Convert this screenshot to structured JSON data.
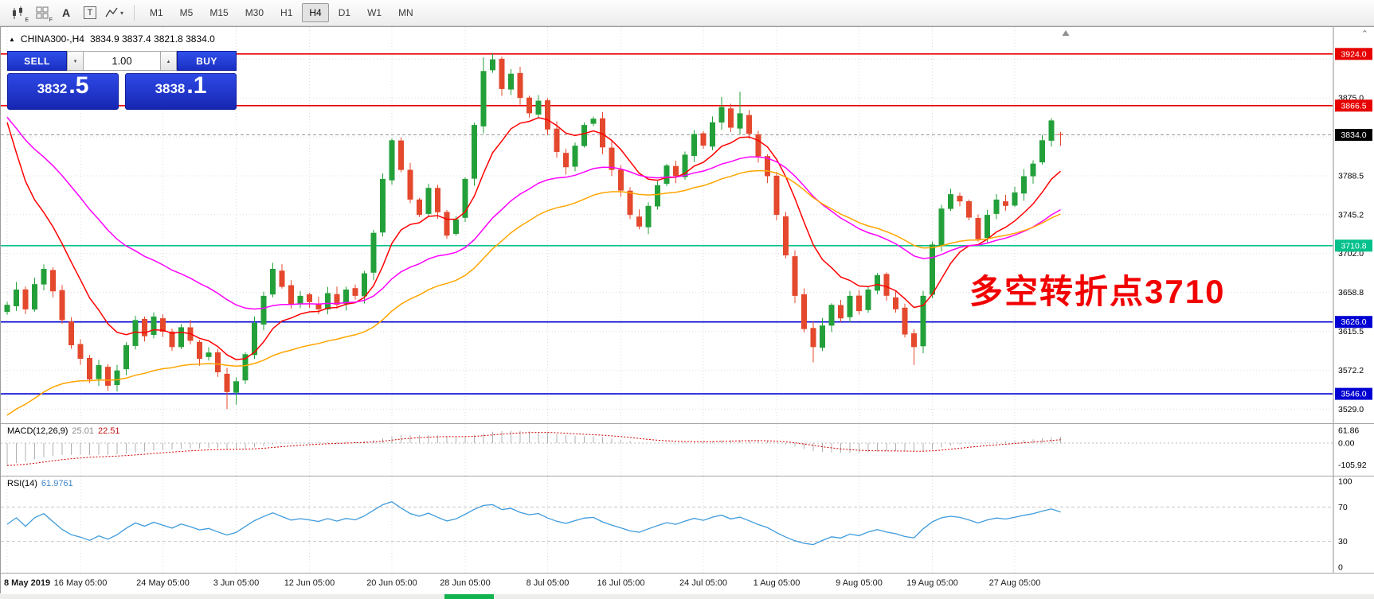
{
  "toolbar": {
    "tools": {
      "chart_style_sub": "E",
      "grid_sub": "F",
      "text_tool": "A",
      "textbox_tool": "T"
    },
    "timeframes": [
      {
        "label": "M1",
        "active": false
      },
      {
        "label": "M5",
        "active": false
      },
      {
        "label": "M15",
        "active": false
      },
      {
        "label": "M30",
        "active": false
      },
      {
        "label": "H1",
        "active": false
      },
      {
        "label": "H4",
        "active": true
      },
      {
        "label": "D1",
        "active": false
      },
      {
        "label": "W1",
        "active": false
      },
      {
        "label": "MN",
        "active": false
      }
    ]
  },
  "chart_header": {
    "symbol": "CHINA300-,H4",
    "ohlc_text": "3834.9 3837.4 3821.8 3834.0"
  },
  "one_click": {
    "sell_label": "SELL",
    "buy_label": "BUY",
    "volume": "1.00",
    "sell_price_main": "3832",
    "sell_price_frac": ".5",
    "buy_price_main": "3838",
    "buy_price_frac": ".1"
  },
  "annotation": {
    "text": "多空转折点3710",
    "color": "#f20000"
  },
  "icons": {
    "collapse": "▲",
    "volume_down": "▾",
    "volume_up": "▴",
    "dropdown": "▾",
    "scroll_up": "⌃"
  },
  "colors": {
    "up": "#23a03a",
    "down": "#e4482d",
    "ma_fast": "#ff0000",
    "ma_medium": "#ff00ff",
    "ma_slow": "#ffa500",
    "resistance": "#e60000",
    "support": "#0000d2",
    "pivot": "#00c08b",
    "current_tag": "#000000",
    "rsi": "#3e9bdc",
    "macd_hist": "#b0b0b0",
    "macd_signal": "#d40000"
  },
  "chart_data": {
    "type": "candlestick",
    "symbol": "CHINA300-",
    "timeframe": "H4",
    "ohlc_current": {
      "open": 3834.9,
      "high": 3837.4,
      "low": 3821.8,
      "close": 3834.0
    },
    "y_range": [
      3516,
      3930
    ],
    "closes": [
      3645,
      3662,
      3640,
      3668,
      3685,
      3660,
      3628,
      3600,
      3585,
      3562,
      3578,
      3555,
      3572,
      3600,
      3628,
      3610,
      3632,
      3615,
      3598,
      3620,
      3605,
      3585,
      3592,
      3570,
      3548,
      3560,
      3590,
      3625,
      3655,
      3685,
      3665,
      3645,
      3655,
      3648,
      3640,
      3658,
      3645,
      3662,
      3655,
      3680,
      3725,
      3785,
      3828,
      3795,
      3762,
      3745,
      3775,
      3748,
      3722,
      3740,
      3785,
      3845,
      3905,
      3918,
      3885,
      3902,
      3875,
      3858,
      3872,
      3840,
      3815,
      3798,
      3822,
      3845,
      3852,
      3820,
      3795,
      3772,
      3745,
      3732,
      3755,
      3778,
      3800,
      3788,
      3812,
      3835,
      3822,
      3848,
      3865,
      3842,
      3858,
      3835,
      3810,
      3788,
      3745,
      3700,
      3655,
      3618,
      3598,
      3622,
      3645,
      3630,
      3655,
      3638,
      3662,
      3678,
      3655,
      3640,
      3612,
      3598,
      3655,
      3712,
      3752,
      3768,
      3760,
      3742,
      3718,
      3745,
      3762,
      3755,
      3770,
      3788,
      3802,
      3828,
      3850,
      3834
    ],
    "wick_overrides": {
      "24": {
        "low": 3529
      },
      "25": {
        "low": 3534
      },
      "52": {
        "high": 3920
      },
      "53": {
        "high": 3924
      },
      "54": {
        "high": 3921
      },
      "78": {
        "high": 3876
      },
      "80": {
        "high": 3882
      },
      "88": {
        "low": 3581
      },
      "99": {
        "low": 3578
      }
    },
    "grid_prices": [
      3529,
      3572.25,
      3615.5,
      3658.75,
      3702,
      3745.25,
      3788.5,
      3831.75,
      3875,
      3918.25
    ],
    "price_axis_labels": [
      {
        "text": "3875.0",
        "price": 3875
      },
      {
        "text": "3788.5",
        "price": 3788.5
      },
      {
        "text": "3745.2",
        "price": 3745.25
      },
      {
        "text": "3702.0",
        "price": 3702
      },
      {
        "text": "3658.8",
        "price": 3658.75
      },
      {
        "text": "3615.5",
        "price": 3615.5
      },
      {
        "text": "3572.2",
        "price": 3572.25
      },
      {
        "text": "3529.0",
        "price": 3529
      }
    ],
    "horizontal_lines": [
      {
        "price": 3924.0,
        "label": "3924.0",
        "color": "#e60000",
        "tag_bg": "#e60000",
        "role": "resistance"
      },
      {
        "price": 3866.5,
        "label": "3866.5",
        "color": "#e60000",
        "tag_bg": "#e60000",
        "role": "resistance"
      },
      {
        "price": 3834.0,
        "label": "3834.0",
        "color": "#9a9a9a",
        "tag_bg": "#000000",
        "style": "current",
        "role": "current-price"
      },
      {
        "price": 3710.8,
        "label": "3710.8",
        "color": "#00c08b",
        "tag_bg": "#00c08b",
        "role": "pivot"
      },
      {
        "price": 3626.0,
        "label": "3626.0",
        "color": "#0000d2",
        "tag_bg": "#0000d2",
        "role": "support"
      },
      {
        "price": 3546.0,
        "label": "3546.0",
        "color": "#0000d2",
        "tag_bg": "#0000d2",
        "role": "support"
      }
    ],
    "moving_averages": [
      {
        "name": "ma-fast",
        "color": "#ff0000",
        "period": 10,
        "seed": 3893
      },
      {
        "name": "ma-medium",
        "color": "#ff00ff",
        "period": 30,
        "seed": 3868
      },
      {
        "name": "ma-slow",
        "color": "#ffa500",
        "period": 40,
        "seed": 3516
      }
    ]
  },
  "macd": {
    "title": "MACD(12,26,9)",
    "value_main": "25.01",
    "value_signal": "22.51",
    "fast": 12,
    "slow": 26,
    "signal_period": 9,
    "axis_labels": [
      {
        "text": "61.86",
        "value": 61.86
      },
      {
        "text": "0.00",
        "value": 0
      },
      {
        "text": "-105.92",
        "value": -105.92
      }
    ]
  },
  "rsi": {
    "title": "RSI(14)",
    "value": "61.9761",
    "period": 14,
    "levels": [
      70,
      30
    ],
    "axis_labels": [
      {
        "text": "100",
        "value": 100
      },
      {
        "text": "70",
        "value": 70
      },
      {
        "text": "30",
        "value": 30
      },
      {
        "text": "0",
        "value": 0
      }
    ]
  },
  "time_axis": {
    "labels": [
      {
        "text": "8 May 2019",
        "index": 0
      },
      {
        "text": "16 May 05:00",
        "index": 8
      },
      {
        "text": "24 May 05:00",
        "index": 17
      },
      {
        "text": "3 Jun 05:00",
        "index": 25
      },
      {
        "text": "12 Jun 05:00",
        "index": 33
      },
      {
        "text": "20 Jun 05:00",
        "index": 42
      },
      {
        "text": "28 Jun 05:00",
        "index": 50
      },
      {
        "text": "8 Jul 05:00",
        "index": 59
      },
      {
        "text": "16 Jul 05:00",
        "index": 67
      },
      {
        "text": "24 Jul 05:00",
        "index": 76
      },
      {
        "text": "1 Aug 05:00",
        "index": 84
      },
      {
        "text": "9 Aug 05:00",
        "index": 93
      },
      {
        "text": "19 Aug 05:00",
        "index": 101
      },
      {
        "text": "27 Aug 05:00",
        "index": 110
      }
    ]
  }
}
